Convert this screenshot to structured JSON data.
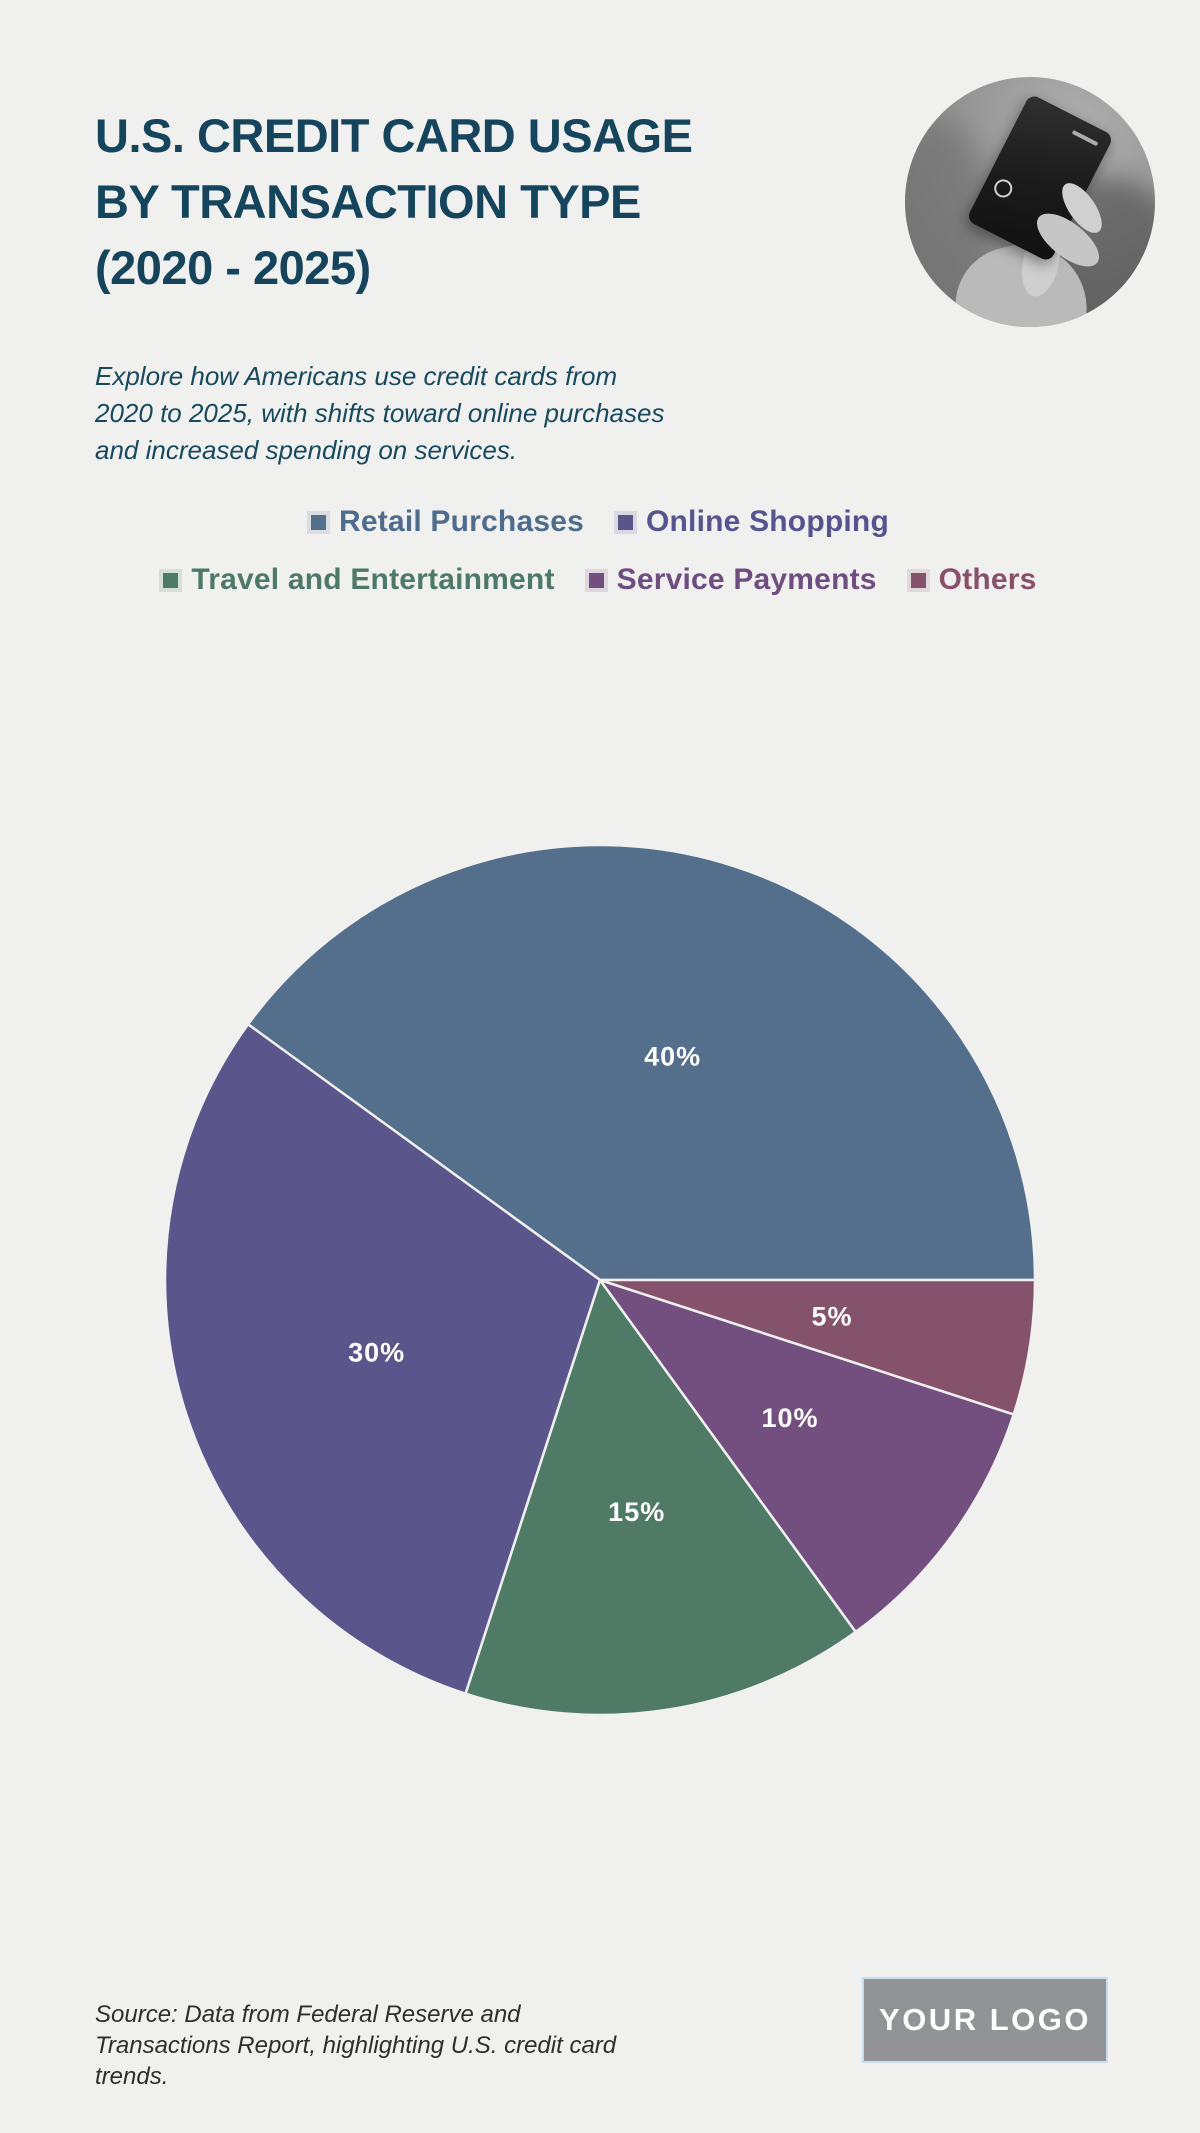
{
  "page": {
    "background": "#f0f0ef"
  },
  "header": {
    "title_line1": "U.S. CREDIT CARD USAGE",
    "title_line2": "BY TRANSACTION TYPE",
    "title_line3": "(2020 - 2025)",
    "subtitle": "Explore how Americans use credit cards from 2020 to 2025, with shifts toward online purchases and increased spending on services.",
    "title_color": "#14455c"
  },
  "photo": {
    "alt": "grayscale photo of a hand holding a dark credit card"
  },
  "chart_data": {
    "type": "pie",
    "title": "U.S. Credit Card Usage by Transaction Type (2020 - 2025)",
    "categories": [
      "Retail Purchases",
      "Online Shopping",
      "Travel and Entertainment",
      "Service Payments",
      "Others"
    ],
    "values": [
      40,
      30,
      15,
      10,
      5
    ],
    "data_labels": [
      "40%",
      "30%",
      "15%",
      "10%",
      "5%"
    ],
    "slice_colors": [
      "#546f8c",
      "#5a568c",
      "#4f7a66",
      "#734f80",
      "#85526b"
    ],
    "legend_label_colors": [
      "#4e6d8c",
      "#555391",
      "#4d7a67",
      "#6f4d80",
      "#8b5069"
    ],
    "legend_rows": [
      [
        0,
        1
      ],
      [
        2,
        3,
        4
      ]
    ],
    "legend_position": "top",
    "start_angle_deg": 0,
    "sweep_direction": "counterclockwise",
    "label_radius_ratio": 0.54,
    "label_color": "#ffffff",
    "divider_color": "#f0f0ef"
  },
  "footer": {
    "source_text": "Source: Data from Federal Reserve and Transactions Report, highlighting U.S. credit card trends.",
    "logo_text": "YOUR LOGO"
  }
}
